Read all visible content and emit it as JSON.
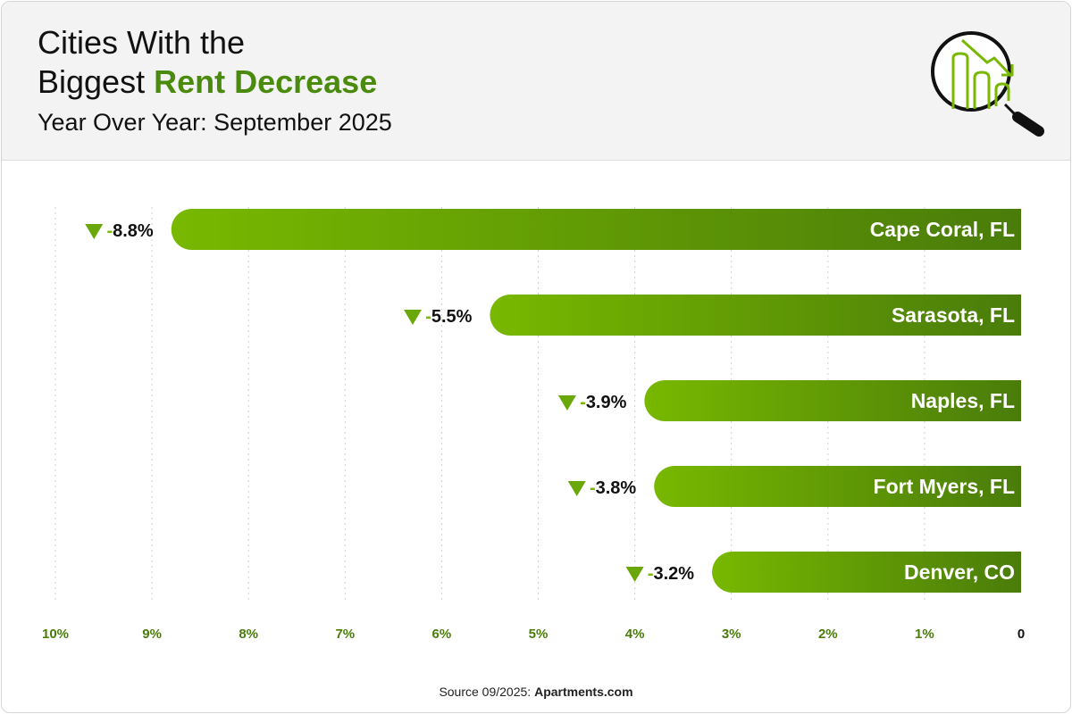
{
  "header": {
    "title_line1": "Cities With the",
    "title_line2_plain": "Biggest ",
    "title_line2_accent": "Rent Decrease",
    "subtitle": "Year Over Year: September 2025",
    "icon": "magnifier-declining-chart-icon"
  },
  "colors": {
    "accent": "#4a8a0c",
    "bar_start": "#78b800",
    "bar_end": "#4a7c0a",
    "axis_label": "#4a7c0a"
  },
  "chart_data": {
    "type": "bar",
    "orientation": "horizontal",
    "categories": [
      "Cape Coral, FL",
      "Sarasota, FL",
      "Naples, FL",
      "Fort Myers, FL",
      "Denver, CO"
    ],
    "values": [
      -8.8,
      -5.5,
      -3.9,
      -3.8,
      -3.2
    ],
    "data_labels": [
      "-8.8%",
      "-5.5%",
      "-3.9%",
      "-3.8%",
      "-3.2%"
    ],
    "xlim": [
      10,
      0
    ],
    "x_ticks": [
      "10%",
      "9%",
      "8%",
      "7%",
      "6%",
      "5%",
      "4%",
      "3%",
      "2%",
      "1%",
      "0"
    ],
    "grid": "vertical dotted"
  },
  "footer": {
    "source_prefix": "Source 09/2025: ",
    "source_name": "Apartments.com"
  }
}
